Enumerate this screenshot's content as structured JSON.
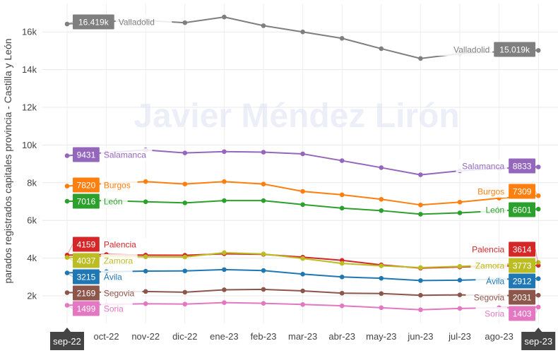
{
  "chart_data": {
    "type": "line",
    "ylabel": "parados registrados capitales provincia - Castilla y León",
    "xlabel": "",
    "watermark": "Javier Méndez Lirón",
    "x": [
      "sep-22",
      "oct-22",
      "nov-22",
      "dic-22",
      "ene-23",
      "feb-23",
      "mar-23",
      "abr-23",
      "may-23",
      "jun-23",
      "jul-23",
      "ago-23",
      "sep-23"
    ],
    "x_tick_labels": [
      "sep-22",
      "oct-22",
      "nov-22",
      "dic-22",
      "ene-23",
      "feb-23",
      "mar-23",
      "abr-23",
      "may-23",
      "jun-23",
      "jul-23",
      "ago-23",
      "sep-23"
    ],
    "y_tick_labels": [
      "2k",
      "4k",
      "6k",
      "8k",
      "10k",
      "12k",
      "14k",
      "16k"
    ],
    "ylim": [
      700,
      17500
    ],
    "grid": true,
    "series": [
      {
        "name": "Valladolid",
        "color": "#7f7f7f",
        "start_label": "16.419k",
        "end_label": "15.019k",
        "values": [
          16419,
          16560,
          16600,
          16490,
          16790,
          16330,
          16000,
          15660,
          15110,
          14590,
          14850,
          14950,
          15019
        ]
      },
      {
        "name": "Salamanca",
        "color": "#9467bd",
        "start_label": "9431",
        "end_label": "8833",
        "values": [
          9431,
          9600,
          9740,
          9580,
          9650,
          9620,
          9530,
          9170,
          8800,
          8420,
          8630,
          8760,
          8833
        ]
      },
      {
        "name": "Burgos",
        "color": "#ff7f0e",
        "start_label": "7820",
        "end_label": "7309",
        "values": [
          7820,
          7960,
          8060,
          7930,
          8060,
          7930,
          7540,
          7360,
          7120,
          6820,
          6970,
          7180,
          7309
        ]
      },
      {
        "name": "León",
        "color": "#2ca02c",
        "start_label": "7016",
        "end_label": "6601",
        "values": [
          7016,
          7050,
          6990,
          6930,
          7050,
          7050,
          6840,
          6650,
          6520,
          6330,
          6400,
          6510,
          6601
        ]
      },
      {
        "name": "Palencia",
        "color": "#d62728",
        "start_label": "4159",
        "end_label": "3614",
        "values": [
          4159,
          4190,
          4160,
          4150,
          4230,
          4200,
          4050,
          3880,
          3640,
          3470,
          3530,
          3580,
          3614
        ]
      },
      {
        "name": "Zamora",
        "color": "#bcbd22",
        "start_label": "4037",
        "end_label": "3773",
        "values": [
          4037,
          4100,
          4070,
          4060,
          4290,
          4220,
          3980,
          3720,
          3590,
          3500,
          3560,
          3650,
          3773
        ]
      },
      {
        "name": "Ávila",
        "color": "#1f77b4",
        "start_label": "3215",
        "end_label": "2912",
        "values": [
          3215,
          3280,
          3310,
          3320,
          3390,
          3340,
          3150,
          3000,
          2930,
          2810,
          2830,
          2880,
          2912
        ]
      },
      {
        "name": "Segovia",
        "color": "#8c564b",
        "start_label": "2169",
        "end_label": "2031",
        "values": [
          2169,
          2200,
          2230,
          2190,
          2320,
          2340,
          2260,
          2140,
          2120,
          2030,
          2050,
          2010,
          2031
        ]
      },
      {
        "name": "Soria",
        "color": "#e377c2",
        "start_label": "1499",
        "end_label": "1403",
        "values": [
          1499,
          1540,
          1580,
          1560,
          1640,
          1600,
          1540,
          1470,
          1370,
          1260,
          1330,
          1370,
          1403
        ]
      }
    ]
  }
}
